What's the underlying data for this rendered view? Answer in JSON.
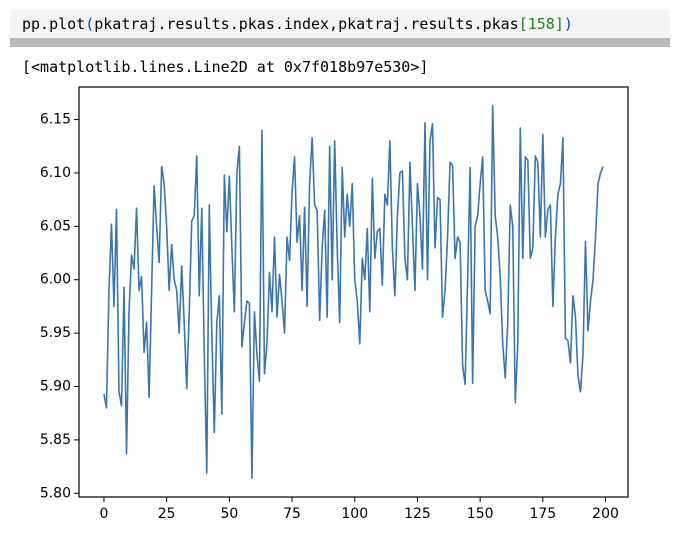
{
  "code": [
    "pp.plot",
    "(",
    "pkatraj.results.pkas.index,pkatraj.results.pkas",
    "[158]",
    ")"
  ],
  "output": "[<matplotlib.lines.Line2D at 0x7f018b97e530>]",
  "chart_data": {
    "type": "line",
    "color": "#3a75ae",
    "values": [
      5.893,
      5.88,
      5.99,
      6.052,
      5.975,
      6.066,
      5.895,
      5.882,
      5.993,
      5.837,
      5.97,
      6.023,
      6.01,
      6.067,
      5.99,
      6.003,
      5.932,
      5.96,
      5.89,
      5.99,
      6.088,
      6.05,
      6.016,
      6.106,
      6.09,
      6.05,
      5.99,
      6.033,
      6.0,
      5.99,
      5.95,
      6.013,
      5.96,
      5.898,
      5.97,
      6.055,
      6.06,
      6.116,
      5.985,
      6.067,
      5.93,
      5.819,
      6.07,
      5.95,
      5.857,
      5.96,
      5.985,
      5.874,
      6.098,
      6.045,
      6.097,
      6.03,
      5.97,
      6.1,
      6.125,
      5.937,
      5.96,
      5.98,
      5.978,
      5.814,
      5.97,
      5.93,
      5.905,
      6.14,
      5.912,
      5.94,
      6.007,
      5.97,
      6.04,
      5.965,
      6.005,
      5.98,
      5.95,
      6.04,
      6.018,
      6.082,
      6.115,
      6.035,
      6.06,
      5.99,
      6.068,
      5.975,
      6.09,
      6.133,
      6.07,
      6.065,
      5.962,
      6.03,
      6.065,
      5.965,
      6.125,
      6.0,
      6.13,
      6.03,
      5.96,
      6.105,
      6.04,
      6.08,
      6.05,
      6.09,
      6.0,
      5.98,
      5.94,
      6.02,
      6.0,
      6.048,
      5.97,
      6.095,
      6.02,
      6.045,
      6.048,
      5.995,
      6.08,
      6.07,
      6.13,
      6.03,
      5.985,
      6.06,
      6.1,
      6.102,
      6.02,
      6.0,
      6.11,
      6.05,
      5.99,
      6.09,
      6.06,
      6.01,
      6.147,
      6.0,
      6.13,
      6.146,
      6.03,
      6.077,
      6.075,
      5.965,
      5.99,
      6.04,
      6.11,
      6.107,
      6.02,
      6.04,
      6.035,
      5.92,
      5.902,
      6.0,
      6.105,
      5.903,
      6.05,
      6.06,
      6.09,
      6.115,
      5.99,
      5.98,
      5.968,
      6.163,
      6.06,
      6.04,
      6.003,
      5.94,
      5.908,
      5.96,
      6.07,
      6.05,
      5.885,
      5.94,
      6.142,
      6.02,
      6.115,
      6.112,
      6.02,
      6.03,
      6.116,
      6.11,
      6.04,
      6.136,
      6.04,
      6.066,
      6.07,
      5.975,
      6.04,
      6.08,
      6.09,
      6.133,
      5.945,
      5.943,
      5.922,
      5.985,
      5.965,
      5.91,
      5.895,
      5.93,
      6.036,
      5.952,
      5.98,
      6.0,
      6.04,
      6.09,
      6.1,
      6.106
    ],
    "xlim": [
      -9.95,
      208.95
    ],
    "xticks": [
      0,
      25,
      50,
      75,
      100,
      125,
      150,
      175,
      200
    ],
    "ylim": [
      5.7965,
      6.1805
    ],
    "yticks": [
      {
        "value": 5.8,
        "label": "5.80"
      },
      5.85,
      {
        "value": 5.9,
        "label": "5.90"
      },
      5.95,
      {
        "value": 6.0,
        "label": "6.00"
      },
      6.05,
      {
        "value": 6.1,
        "label": "6.10"
      },
      6.15
    ]
  }
}
